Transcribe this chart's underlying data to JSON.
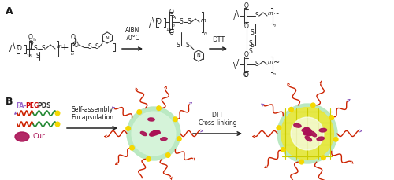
{
  "fig_width": 5.0,
  "fig_height": 2.29,
  "dpi": 100,
  "bg_color": "#ffffff",
  "panel_A_label": "A",
  "panel_B_label": "B",
  "label_fontsize": 9,
  "label_fontweight": "bold",
  "text_color": "#1a1a1a",
  "aibn_text": "AIBN\n70°C",
  "dtt_text": "DTT",
  "dtt2_text": "DTT\nCross-linking",
  "selfassembly_text": "Self-assembly\nEncapsulation",
  "fa_color": "#9966cc",
  "peg_color": "#cc0000",
  "pds_color": "#333333",
  "cur_text": "Cur",
  "cargo_color": "#aa1155",
  "micelle_green": "#b8e8c0",
  "micelle_light_green": "#d8f5dc",
  "crosslink_yellow": "#e8e840",
  "crosslink_grid": "#cccc00",
  "dot_color": "#f5d800",
  "chain_red": "#cc2200",
  "chain_purple": "#8855bb",
  "chain_green": "#228833",
  "chem_color": "#333333"
}
